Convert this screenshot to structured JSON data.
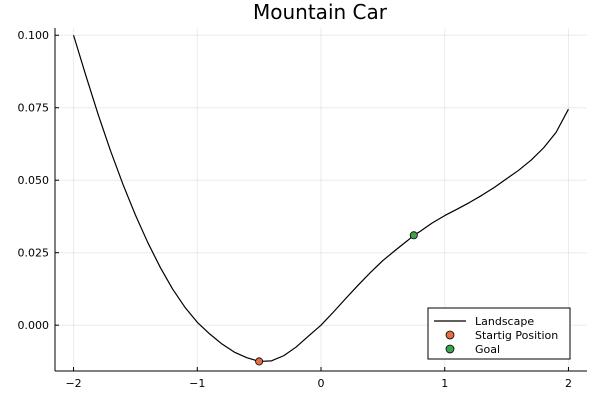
{
  "chart_data": {
    "type": "line",
    "title": "Mountain Car",
    "xlabel": "",
    "ylabel": "",
    "xlim": [
      -2.15,
      2.15
    ],
    "ylim": [
      -0.0158,
      0.1025
    ],
    "x_ticks": [
      -2,
      -1,
      0,
      1,
      2
    ],
    "x_tick_labels": [
      "−2",
      "−1",
      "0",
      "1",
      "2"
    ],
    "y_ticks": [
      0.0,
      0.025,
      0.05,
      0.075,
      0.1
    ],
    "y_tick_labels": [
      "0.000",
      "0.025",
      "0.050",
      "0.075",
      "0.100"
    ],
    "grid": true,
    "legend_position": "bottom-right",
    "series": [
      {
        "name": "Landscape",
        "kind": "line",
        "color": "#000000",
        "x": [
          -2.0,
          -1.9,
          -1.8,
          -1.7,
          -1.6,
          -1.5,
          -1.4,
          -1.3,
          -1.2,
          -1.1,
          -1.0,
          -0.9,
          -0.8,
          -0.7,
          -0.6,
          -0.5,
          -0.4,
          -0.3,
          -0.2,
          -0.1,
          0.0,
          0.1,
          0.2,
          0.3,
          0.4,
          0.5,
          0.6,
          0.7,
          0.75,
          0.8,
          0.9,
          1.0,
          1.1,
          1.2,
          1.3,
          1.4,
          1.5,
          1.6,
          1.7,
          1.8,
          1.9,
          2.0
        ],
        "y": [
          0.1,
          0.086,
          0.0725,
          0.06,
          0.0485,
          0.038,
          0.0285,
          0.02,
          0.0125,
          0.0062,
          0.001,
          -0.003,
          -0.0065,
          -0.0093,
          -0.0112,
          -0.0125,
          -0.0123,
          -0.0105,
          -0.0075,
          -0.0037,
          0.0,
          0.0045,
          0.0092,
          0.0138,
          0.0182,
          0.0223,
          0.0258,
          0.0292,
          0.031,
          0.0323,
          0.0353,
          0.0378,
          0.04,
          0.0423,
          0.0448,
          0.0475,
          0.0505,
          0.0535,
          0.057,
          0.0612,
          0.0665,
          0.0745
        ]
      },
      {
        "name": "Startig Position",
        "kind": "scatter",
        "color": "#E26F46",
        "x": [
          -0.5
        ],
        "y": [
          -0.0125
        ]
      },
      {
        "name": "Goal",
        "kind": "scatter",
        "color": "#3DA44D",
        "x": [
          0.75
        ],
        "y": [
          0.031
        ]
      }
    ]
  }
}
